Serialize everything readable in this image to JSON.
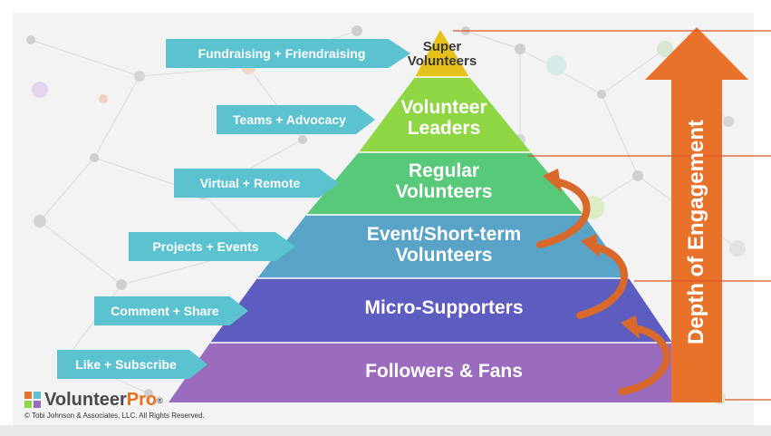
{
  "pyramid": {
    "levels": [
      {
        "label_line1": "Super",
        "label_line2": "Volunteers",
        "tag": "Fundraising + Friendraising",
        "color": "#e6c11a"
      },
      {
        "label_line1": "Volunteer",
        "label_line2": "Leaders",
        "tag": "Teams + Advocacy",
        "color": "#8fd645"
      },
      {
        "label_line1": "Regular",
        "label_line2": "Volunteers",
        "tag": "Virtual + Remote",
        "color": "#57c978"
      },
      {
        "label_line1": "Event/Short-term",
        "label_line2": "Volunteers",
        "tag": "Projects + Events",
        "color": "#5aa3c8"
      },
      {
        "label_line1": "Micro-Supporters",
        "tag": "Comment + Share",
        "color": "#5d5cc0"
      },
      {
        "label_line1": "Followers & Fans",
        "tag": "Like + Subscribe",
        "color": "#9b6bbd"
      }
    ]
  },
  "depth_arrow": {
    "label": "Depth of Engagement",
    "color": "#e8722a"
  },
  "logo": {
    "brand": "Volunteer",
    "brand_accent": "Pro",
    "mark": "®"
  },
  "copyright": "© Tobi Johnson & Associates, LLC. All Rights Reserved.",
  "colors": {
    "tag_bg": "#5bc2d0",
    "curl_arrow": "#d9692a",
    "rule_line": "#d9562a",
    "background": "#f3f3f3"
  }
}
